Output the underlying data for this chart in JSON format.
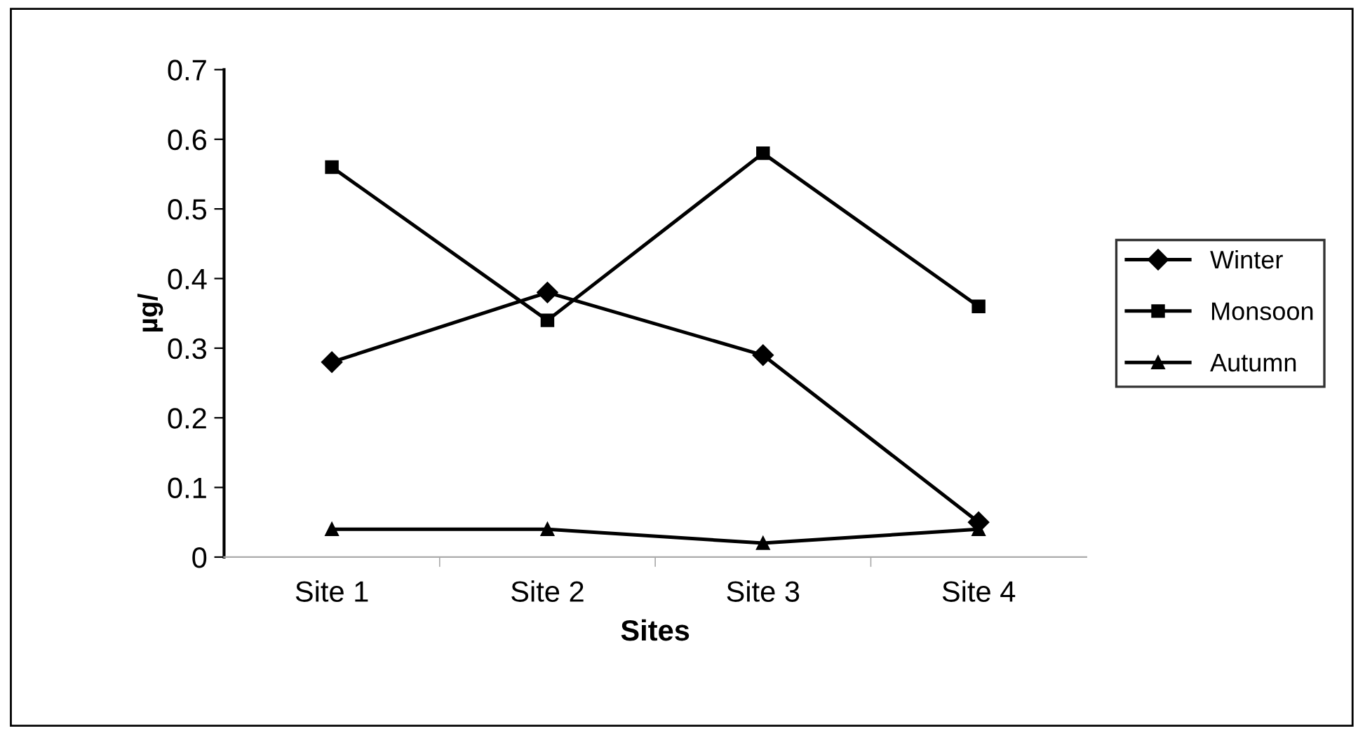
{
  "chart_data": {
    "type": "line",
    "xlabel": "Sites",
    "ylabel": "µg/",
    "categories": [
      "Site 1",
      "Site 2",
      "Site 3",
      "Site 4"
    ],
    "series": [
      {
        "name": "Winter",
        "color": "#000000",
        "marker": "diamond",
        "values": [
          0.28,
          0.38,
          0.29,
          0.05
        ]
      },
      {
        "name": "Monsoon",
        "color": "#000000",
        "marker": "square",
        "values": [
          0.56,
          0.34,
          0.58,
          0.36
        ]
      },
      {
        "name": "Autumn",
        "color": "#000000",
        "marker": "triangle",
        "values": [
          0.04,
          0.04,
          0.02,
          0.04
        ]
      }
    ],
    "ylim": [
      0,
      0.7
    ],
    "yticks": [
      0,
      0.1,
      0.2,
      0.3,
      0.4,
      0.5,
      0.6,
      0.7
    ],
    "grid": false,
    "legend": "right",
    "line_style": "solid"
  }
}
